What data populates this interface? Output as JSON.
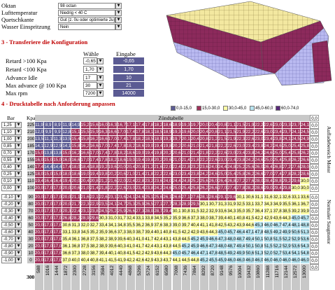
{
  "settings": {
    "rows": [
      {
        "label": "Oktan",
        "value": "98 octan"
      },
      {
        "label": "Lufttemperatur",
        "value": "Niedrig < 40 C"
      },
      {
        "label": "Quetschkante",
        "value": "Gut (z. 0u oder optimierte 2u)"
      },
      {
        "label": "Wasser Einspritzung",
        "value": "Nein"
      }
    ]
  },
  "config": {
    "title": "3 - Transferiere die Konfiguration",
    "col_choose": "Wähle",
    "col_input": "Eingabe",
    "rows": [
      {
        "label": "Retard >100 Kpa",
        "choose": "-0,65",
        "input": "-0,65"
      },
      {
        "label": "Retard <100 Kpa",
        "choose": "1,70",
        "input": "1,70"
      },
      {
        "label": "Advance Idle",
        "choose": "17",
        "input": "10"
      },
      {
        "label": "Max advance @ 100 Kpa",
        "choose": "30",
        "input": "21"
      },
      {
        "label": "Max rpm",
        "choose": "7200",
        "input": "14000"
      }
    ]
  },
  "table": {
    "title": "4 - Drucktabelle nach Anforderung anpassen",
    "col_bar": "Bar",
    "col_kpa": "Kpa",
    "header": "Zündtabelle",
    "legend": [
      "0,0-15,0",
      "15,0-30,0",
      "30,0-45,0",
      "45,0-60,0",
      "60,0-74,0"
    ],
    "bottom_label": "300",
    "side_top": "Aufladebereich Motor",
    "side_bottom": "Normaler Saugmotor",
    "top_end_value": "0,0",
    "bottom_end_value": "0,0",
    "rpm": [
      "588",
      "1016",
      "1444",
      "1872",
      "2300",
      "2728",
      "3156",
      "3584",
      "4012",
      "4440",
      "4868",
      "5296",
      "5724",
      "6152",
      "6580",
      "7008",
      "7436",
      "7864",
      "8292",
      "8720",
      "9148",
      "9576",
      "10004",
      "10432",
      "10860",
      "11288",
      "11716",
      "12144",
      "12572",
      "13000"
    ],
    "rows": [
      {
        "bar": "1,25",
        "kpa": "225",
        "rt": "0,0",
        "v": [
          "11,9",
          "8,9",
          "8,9",
          "11,9",
          "14,9",
          "15,2",
          "15,6",
          "16,0",
          "16,3",
          "16,7",
          "17,1",
          "17,4",
          "17,8",
          "18,2",
          "18,6",
          "18,9",
          "19,3",
          "19,7",
          "20,0",
          "20,4",
          "20,8",
          "21,1",
          "21,5",
          "21,9",
          "22,2",
          "22,6",
          "23,0",
          "23,3",
          "23,7",
          "24,1"
        ]
      },
      {
        "bar": "1,10",
        "kpa": "210",
        "rt": "0,0",
        "v": [
          "12,0",
          "9,9",
          "9,9",
          "12,8",
          "15,1",
          "15,5",
          "15,9",
          "16,3",
          "16,6",
          "17,0",
          "17,4",
          "17,8",
          "18,1",
          "18,5",
          "18,9",
          "19,3",
          "19,6",
          "20,0",
          "20,4",
          "20,8",
          "21,1",
          "21,5",
          "21,9",
          "22,2",
          "22,6",
          "23,0",
          "23,4",
          "23,7",
          "24,1",
          "24,5"
        ]
      },
      {
        "bar": "1,00",
        "kpa": "200",
        "rt": "0,0",
        "v": [
          "13,5",
          "11,1",
          "11,3",
          "13,5",
          "15,4",
          "15,8",
          "16,2",
          "16,6",
          "17,0",
          "17,4",
          "17,8",
          "18,2",
          "18,5",
          "18,9",
          "19,3",
          "19,7",
          "20,1",
          "20,4",
          "20,8",
          "21,2",
          "21,5",
          "21,9",
          "22,3",
          "22,6",
          "23,0",
          "23,4",
          "23,8",
          "24,1",
          "24,5",
          "24,9"
        ]
      },
      {
        "bar": "0,85",
        "kpa": "185",
        "rt": "0,0",
        "v": [
          "14,1",
          "12,9",
          "12,9",
          "14,1",
          "15,8",
          "16,2",
          "16,6",
          "17,0",
          "17,4",
          "17,8",
          "18,2",
          "18,6",
          "19,0",
          "19,4",
          "19,8",
          "20,2",
          "20,6",
          "21,0",
          "21,4",
          "21,8",
          "22,2",
          "22,6",
          "23,0",
          "23,4",
          "23,8",
          "24,2",
          "24,6",
          "25,0",
          "25,4",
          "25,8"
        ]
      },
      {
        "bar": "0,70",
        "kpa": "170",
        "rt": "0,0",
        "v": [
          "15,0",
          "13,8",
          "13,8",
          "15,0",
          "16,2",
          "16,6",
          "17,0",
          "17,4",
          "17,8",
          "18,2",
          "18,6",
          "19,0",
          "19,4",
          "19,8",
          "20,2",
          "20,6",
          "21,0",
          "21,4",
          "21,8",
          "22,2",
          "22,6",
          "23,0",
          "23,4",
          "23,8",
          "24,2",
          "24,6",
          "25,0",
          "25,4",
          "25,8",
          "26,2"
        ]
      },
      {
        "bar": "0,55",
        "kpa": "155",
        "rt": "0,0",
        "v": [
          "16,0",
          "15,0",
          "15,0",
          "16,0",
          "16,6",
          "17,0",
          "17,4",
          "17,8",
          "18,2",
          "18,6",
          "19,0",
          "19,4",
          "19,8",
          "20,2",
          "20,6",
          "21,0",
          "21,4",
          "21,8",
          "22,2",
          "22,6",
          "23,0",
          "23,4",
          "23,8",
          "24,2",
          "24,6",
          "25,0",
          "25,4",
          "25,8",
          "26,2",
          "26,6"
        ]
      },
      {
        "bar": "0,40",
        "kpa": "140",
        "rt": "0,0",
        "v": [
          "17,4",
          "14,4",
          "14,4",
          "17,4",
          "18,0",
          "18,4",
          "18,8",
          "19,2",
          "19,6",
          "20,0",
          "20,4",
          "20,8",
          "21,2",
          "21,6",
          "22,0",
          "22,4",
          "22,8",
          "23,2",
          "23,6",
          "24,0",
          "24,4",
          "24,8",
          "25,2",
          "25,6",
          "26,0",
          "26,4",
          "26,8",
          "27,2",
          "27,6",
          "28,0"
        ]
      },
      {
        "bar": "0,25",
        "kpa": "125",
        "rt": "0,0",
        "v": [
          "18,0",
          "15,0",
          "15,0",
          "18,0",
          "18,6",
          "19,0",
          "19,4",
          "19,8",
          "20,2",
          "20,6",
          "21,0",
          "21,4",
          "21,8",
          "22,2",
          "22,6",
          "23,0",
          "23,4",
          "23,8",
          "24,2",
          "24,6",
          "25,0",
          "25,4",
          "25,8",
          "26,2",
          "26,6",
          "27,0",
          "27,4",
          "27,8",
          "28,2",
          "28,6"
        ]
      },
      {
        "bar": "0,10",
        "kpa": "110",
        "rt": "0,0",
        "v": [
          "19,4",
          "16,4",
          "16,4",
          "19,4",
          "20,0",
          "20,4",
          "20,8",
          "21,2",
          "21,6",
          "22,0",
          "22,4",
          "22,8",
          "23,2",
          "23,6",
          "24,0",
          "24,4",
          "24,8",
          "25,2",
          "25,6",
          "26,0",
          "26,4",
          "26,8",
          "27,2",
          "27,6",
          "28,0",
          "28,4",
          "28,8",
          "29,2",
          "29,6",
          "30,0"
        ]
      },
      {
        "bar": "0,00",
        "kpa": "100",
        "rt": "0,0",
        "v": [
          "20,0",
          "17,0",
          "17,0",
          "20,0",
          "20,6",
          "21,0",
          "21,4",
          "21,8",
          "22,2",
          "22,6",
          "23,0",
          "23,4",
          "23,8",
          "24,2",
          "24,6",
          "25,0",
          "25,4",
          "25,8",
          "26,2",
          "26,6",
          "27,0",
          "27,4",
          "27,8",
          "28,2",
          "28,6",
          "29,0",
          "29,4",
          "29,8",
          "30,0",
          "30,0"
        ]
      },
      {
        "bar": "-0,10",
        "kpa": "90",
        "rt": "0,0",
        "v": [
          "20,0",
          "17,0",
          "17,0",
          "20,0",
          "21,1",
          "21,6",
          "22,1",
          "22,6",
          "23,1",
          "23,6",
          "24,1",
          "24,6",
          "25,1",
          "25,6",
          "26,1",
          "26,6",
          "27,1",
          "27,6",
          "28,1",
          "28,6",
          "29,1",
          "29,6",
          "30,1",
          "30,6",
          "31,1",
          "31,6",
          "32,1",
          "32,6",
          "33,1",
          "33,6"
        ]
      },
      {
        "bar": "-0,20",
        "kpa": "80",
        "rt": "0,0",
        "v": [
          "20,0",
          "17,0",
          "17,0",
          "20,0",
          "21,7",
          "22,3",
          "22,9",
          "23,5",
          "24,1",
          "24,7",
          "25,3",
          "25,9",
          "26,5",
          "27,1",
          "27,7",
          "28,3",
          "28,9",
          "29,5",
          "30,1",
          "30,7",
          "31,3",
          "31,9",
          "32,5",
          "33,1",
          "33,7",
          "34,3",
          "34,9",
          "35,5",
          "36,1",
          "36,7"
        ]
      },
      {
        "bar": "-0,30",
        "kpa": "70",
        "rt": "0,0",
        "v": [
          "20,0",
          "17,0",
          "17,0",
          "20,3",
          "22,4",
          "23,1",
          "23,8",
          "24,5",
          "25,2",
          "25,9",
          "26,6",
          "27,3",
          "28,0",
          "28,7",
          "29,4",
          "30,1",
          "30,8",
          "31,5",
          "32,2",
          "32,9",
          "33,6",
          "34,3",
          "35,0",
          "35,7",
          "36,4",
          "37,1",
          "37,8",
          "38,5",
          "39,2",
          "39,9"
        ]
      },
      {
        "bar": "-0,40",
        "kpa": "60",
        "rt": "0,0",
        "v": [
          "20,0",
          "17,0",
          "17,0",
          "26,8",
          "28,2",
          "28,9",
          "29,6",
          "30,3",
          "31,0",
          "31,7",
          "32,4",
          "33,1",
          "33,8",
          "34,5",
          "35,2",
          "35,9",
          "36,6",
          "37,3",
          "38,0",
          "38,7",
          "39,4",
          "40,1",
          "40,8",
          "41,5",
          "42,2",
          "42,9",
          "43,6",
          "44,3",
          "45,0",
          "45,7"
        ]
      },
      {
        "bar": "-0,50",
        "kpa": "50",
        "rt": "0,0",
        "v": [
          "20,0",
          "17,0",
          "17,0",
          "30,6",
          "31,3",
          "32,0",
          "32,7",
          "33,4",
          "34,1",
          "34,8",
          "35,5",
          "36,2",
          "36,9",
          "37,6",
          "38,3",
          "39,0",
          "39,7",
          "40,4",
          "41,1",
          "41,8",
          "42,5",
          "43,2",
          "43,9",
          "44,6",
          "45,3",
          "46,0",
          "46,7",
          "47,4",
          "48,1",
          "48,8"
        ]
      },
      {
        "bar": "-0,60",
        "kpa": "40",
        "rt": "0,0",
        "v": [
          "20,0",
          "17,0",
          "17,0",
          "33,1",
          "33,8",
          "34,5",
          "35,2",
          "35,9",
          "36,6",
          "37,3",
          "38,0",
          "38,7",
          "39,4",
          "40,1",
          "40,8",
          "41,5",
          "42,2",
          "42,9",
          "43,6",
          "44,3",
          "45,0",
          "45,7",
          "46,4",
          "47,1",
          "47,8",
          "48,5",
          "49,2",
          "49,9",
          "50,6",
          "51,3"
        ]
      },
      {
        "bar": "-0,70",
        "kpa": "30",
        "rt": "0,0",
        "v": [
          "20,0",
          "17,0",
          "17,0",
          "35,4",
          "36,1",
          "36,8",
          "37,5",
          "38,2",
          "38,9",
          "39,6",
          "40,3",
          "41,0",
          "41,7",
          "42,4",
          "43,1",
          "43,8",
          "44,5",
          "45,2",
          "45,9",
          "46,6",
          "47,3",
          "48,0",
          "48,7",
          "49,4",
          "50,1",
          "50,8",
          "51,5",
          "52,2",
          "52,9",
          "53,6"
        ]
      },
      {
        "bar": "-0,80",
        "kpa": "20",
        "rt": "0,0",
        "v": [
          "20,0",
          "17,0",
          "17,0",
          "36,1",
          "36,8",
          "37,5",
          "38,2",
          "38,9",
          "39,6",
          "40,3",
          "41,0",
          "41,7",
          "42,4",
          "43,1",
          "43,8",
          "44,5",
          "45,2",
          "45,9",
          "46,6",
          "47,3",
          "48,0",
          "48,7",
          "49,4",
          "50,1",
          "50,8",
          "51,5",
          "52,2",
          "52,9",
          "53,6",
          "54,3"
        ]
      },
      {
        "bar": "-0,90",
        "kpa": "10",
        "rt": "0,0",
        "v": [
          "20,0",
          "17,0",
          "17,0",
          "36,6",
          "37,3",
          "38,0",
          "38,7",
          "39,4",
          "40,1",
          "40,8",
          "41,5",
          "42,2",
          "42,9",
          "43,6",
          "44,3",
          "45,0",
          "45,7",
          "46,4",
          "47,1",
          "47,8",
          "48,5",
          "49,2",
          "49,9",
          "50,6",
          "51,3",
          "52,0",
          "52,7",
          "53,4",
          "54,1",
          "54,8"
        ]
      },
      {
        "bar": "-1,00",
        "kpa": "0",
        "rt": "0,0",
        "v": [
          "20,0",
          "17,0",
          "17,0",
          "37,0",
          "40,0",
          "40,4",
          "40,8",
          "41,1",
          "41,5",
          "41,9",
          "42,2",
          "42,6",
          "42,9",
          "43,3",
          "43,7",
          "44,1",
          "44,5",
          "44,8",
          "45,2",
          "45,5",
          "45,9",
          "46,0",
          "46,0",
          "46,0",
          "46,0",
          "46,0",
          "46,0",
          "46,0",
          "46,0",
          "46,0"
        ]
      }
    ]
  },
  "colors": {
    "band0": "#5b5b93",
    "band1": "#a0325a",
    "band2": "#ffffa8",
    "band3": "#b8e4f0",
    "band4": "#5a2a7a",
    "grey": "#c8c8c8",
    "section": "#c00000"
  }
}
